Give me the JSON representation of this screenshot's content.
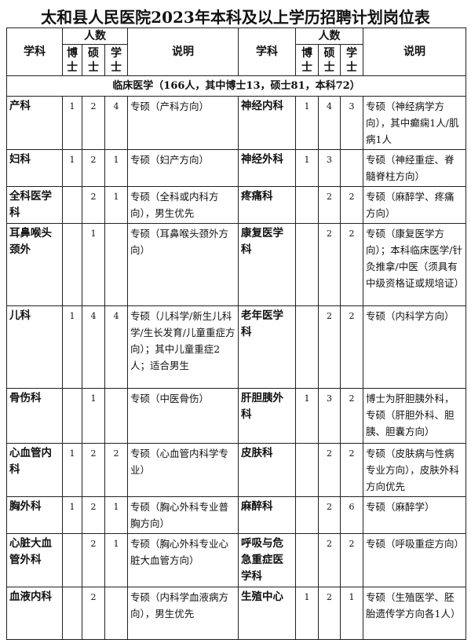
{
  "title": "太和县人民医院2023年本科及以上学历招聘计划岗位表",
  "headers": {
    "subject": "学科",
    "count": "人数",
    "phd": "博士",
    "master": "硕士",
    "bachelor": "学士",
    "note": "说明"
  },
  "section": "临床医学（166人，其中博士13，硕士81，本科72）",
  "rows": [
    [
      [
        "产科",
        "1",
        "2",
        "4",
        "专硕（产科方向）"
      ],
      [
        "神经内科",
        "1",
        "4",
        "3",
        "专硕（神经病学方向），其中癫痫1人/肌病1人"
      ]
    ],
    [
      [
        "妇科",
        "1",
        "2",
        "1",
        "专硕（妇产方向）"
      ],
      [
        "神经外科",
        "1",
        "3",
        "",
        "专硕（神经重症、脊髓脊柱方向）"
      ]
    ],
    [
      [
        "全科医学科",
        "",
        "2",
        "1",
        "专硕（全科或内科方向），男生优先"
      ],
      [
        "疼痛科",
        "",
        "2",
        "2",
        "专硕（麻醉学、疼痛方向）"
      ]
    ],
    [
      [
        "耳鼻喉头颈外",
        "",
        "1",
        "",
        "专硕（耳鼻喉头颈外方向）"
      ],
      [
        "康复医学科",
        "",
        "2",
        "2",
        "专硕（康复医学方向）；本科临床医学/针灸推拿/中医（须具有中级资格证或规培证）"
      ]
    ],
    [
      [
        "儿科",
        "1",
        "4",
        "4",
        "专硕（儿科学/新生儿科学/生长发育/儿童重症方向）；其中儿童重症2人；适合男生"
      ],
      [
        "老年医学科",
        "",
        "2",
        "2",
        "专硕（内科学方向）"
      ]
    ],
    [
      [
        "骨伤科",
        "",
        "1",
        "",
        "专硕（中医骨伤）"
      ],
      [
        "肝胆胰外科",
        "1",
        "3",
        "2",
        "博士为肝胆胰外科，专硕（肝胆外科、胆胰、胆囊方向）"
      ]
    ],
    [
      [
        "心血管内科",
        "1",
        "2",
        "2",
        "专硕（心血管内科学专业）"
      ],
      [
        "皮肤科",
        "",
        "2",
        "2",
        "专硕（皮肤病与性病专业方向），皮肤外科方向优先"
      ]
    ],
    [
      [
        "胸外科",
        "1",
        "2",
        "1",
        "专硕（胸心外科专业普胸方向）"
      ],
      [
        "麻醉科",
        "",
        "2",
        "6",
        "专硕（麻醉学）"
      ]
    ],
    [
      [
        "心脏大血管外科",
        "",
        "2",
        "1",
        "专硕（胸心外科专业心脏大血管方向）"
      ],
      [
        "呼吸与危急重症医学科",
        "",
        "2",
        "2",
        "专硕（呼吸重症方向）"
      ]
    ],
    [
      [
        "血液内科",
        "",
        "2",
        "",
        "专硕（内科学血液病方向），男生优先"
      ],
      [
        "生殖中心",
        "1",
        "2",
        "1",
        "专硕（生殖医学、胚胎遗传学方向各1人）"
      ]
    ]
  ]
}
